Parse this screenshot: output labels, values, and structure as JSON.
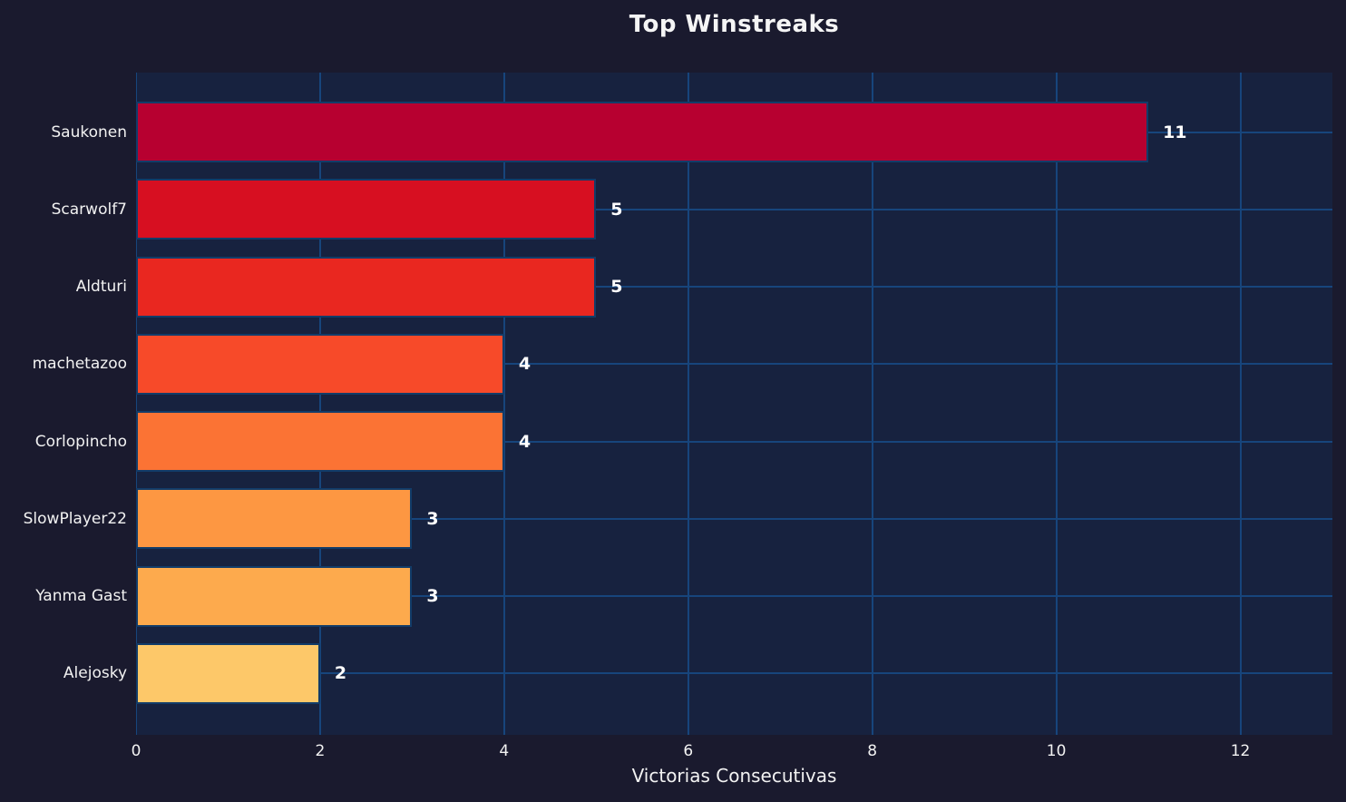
{
  "title": "Top Winstreaks",
  "chart_data": {
    "type": "bar",
    "orientation": "horizontal",
    "title": "Top Winstreaks",
    "xlabel": "Victorias Consecutivas",
    "ylabel": "",
    "categories": [
      "Saukonen",
      "Scarwolf7",
      "Aldturi",
      "machetazoo",
      "Corlopincho",
      "SlowPlayer22",
      "Yanma Gast",
      "Alejosky"
    ],
    "values": [
      11,
      5,
      5,
      4,
      4,
      3,
      3,
      2
    ],
    "value_labels": [
      "11",
      "5",
      "5",
      "4",
      "4",
      "3",
      "3",
      "2"
    ],
    "bar_colors": [
      "#b70030",
      "#d70f21",
      "#e92720",
      "#f74a29",
      "#fb7334",
      "#fd9742",
      "#fdaa4d",
      "#fdc869"
    ],
    "xlim": [
      0,
      13
    ],
    "xticks": [
      0,
      2,
      4,
      6,
      8,
      10,
      12
    ],
    "xtick_labels": [
      "0",
      "2",
      "4",
      "6",
      "8",
      "10",
      "12"
    ],
    "grid": true,
    "legend": "none"
  },
  "colors": {
    "figure_bg": "#1a1a2e",
    "axes_bg": "#17223f",
    "grid": "#17457c",
    "bar_edge": "#123c69",
    "text": "#f2f2f2",
    "title_text": "#f5f5f5",
    "value_label_text": "#ffffff"
  }
}
